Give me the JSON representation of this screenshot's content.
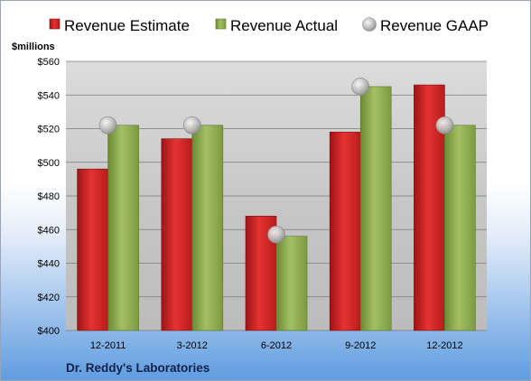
{
  "chart_data": {
    "type": "bar",
    "unit_label": "$millions",
    "company": "Dr. Reddy's Laboratories",
    "categories": [
      "12-2011",
      "3-2012",
      "6-2012",
      "9-2012",
      "12-2012"
    ],
    "series": [
      {
        "name": "Revenue Estimate",
        "kind": "bar",
        "color": "#d42a2a",
        "values": [
          496,
          514,
          468,
          518,
          546
        ]
      },
      {
        "name": "Revenue Actual",
        "kind": "bar",
        "color": "#8fad4f",
        "values": [
          522,
          522,
          456,
          545,
          522
        ]
      },
      {
        "name": "Revenue GAAP",
        "kind": "marker",
        "color": "#b8b8b8",
        "values": [
          522,
          522,
          457,
          545,
          522
        ]
      }
    ],
    "ylim": [
      400,
      560
    ],
    "yticks": [
      "$400",
      "$420",
      "$440",
      "$460",
      "$480",
      "$500",
      "$520",
      "$540",
      "$560"
    ],
    "grid": true,
    "legend_position": "top"
  }
}
